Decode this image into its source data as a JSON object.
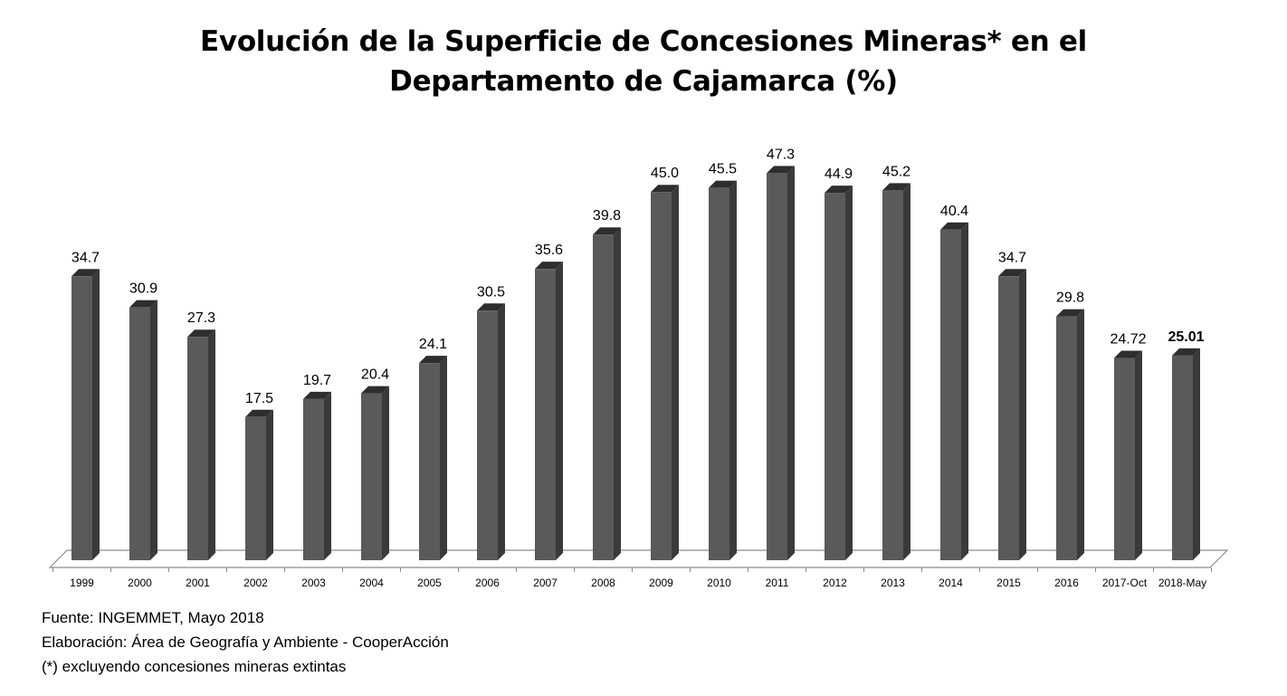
{
  "chart_data": {
    "type": "bar",
    "title_lines": [
      "Evolución de la Superficie de Concesiones Mineras* en el",
      "Departamento de Cajamarca (%)"
    ],
    "categories": [
      "1999",
      "2000",
      "2001",
      "2002",
      "2003",
      "2004",
      "2005",
      "2006",
      "2007",
      "2008",
      "2009",
      "2010",
      "2011",
      "2012",
      "2013",
      "2014",
      "2015",
      "2016",
      "2017-Oct",
      "2018-May"
    ],
    "values": [
      34.7,
      30.9,
      27.3,
      17.5,
      19.7,
      20.4,
      24.1,
      30.5,
      35.6,
      39.8,
      45.0,
      45.5,
      47.3,
      44.9,
      45.2,
      40.4,
      34.7,
      29.8,
      24.72,
      25.01
    ],
    "value_labels": [
      "34.7",
      "30.9",
      "27.3",
      "17.5",
      "19.7",
      "20.4",
      "24.1",
      "30.5",
      "35.6",
      "39.8",
      "45.0",
      "45.5",
      "47.3",
      "44.9",
      "45.2",
      "40.4",
      "34.7",
      "29.8",
      "24.72",
      "25.01"
    ],
    "highlight_label_index": 19,
    "style": "3d-column",
    "grid": false,
    "legend": "none",
    "colors": {
      "bar_front": "#5a5a5a",
      "bar_side": "#3a3a3a",
      "bar_top": "#2e2e2e",
      "floor": "#ffffff",
      "floor_edge": "#8c8c8c"
    }
  },
  "notes": {
    "source": "Fuente: INGEMMET, Mayo 2018",
    "elaboration": "Elaboración: Área de Geografía y Ambiente - CooperAcción",
    "footnote": "(*) excluyendo concesiones mineras extintas"
  }
}
